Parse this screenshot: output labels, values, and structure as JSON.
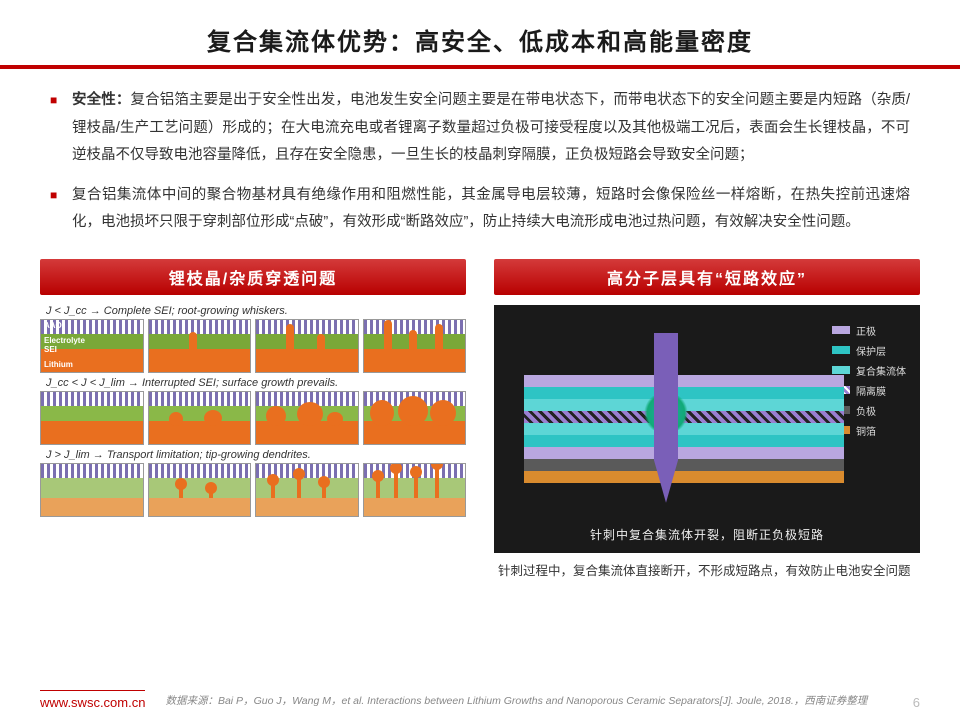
{
  "title": "复合集流体优势：高安全、低成本和高能量密度",
  "bullets": [
    {
      "bold": "安全性：",
      "text": "复合铝箔主要是出于安全性出发，电池发生安全问题主要是在带电状态下，而带电状态下的安全问题主要是内短路（杂质/锂枝晶/生产工艺问题）形成的；在大电流充电或者锂离子数量超过负极可接受程度以及其他极端工况后，表面会生长锂枝晶，不可逆枝晶不仅导致电池容量降低，且存在安全隐患，一旦生长的枝晶刺穿隔膜，正负极短路会导致安全问题；"
    },
    {
      "bold": "",
      "text": "复合铝集流体中间的聚合物基材具有绝缘作用和阻燃性能，其金属导电层较薄，短路时会像保险丝一样熔断，在热失控前迅速熔化，电池损坏只限于穿刺部位形成“点破”，有效形成“断路效应”，防止持续大电流形成电池过热问题，有效解决安全性问题。"
    }
  ],
  "left_panel": {
    "header": "锂枝晶/杂质穿透问题",
    "row1_label": "J < J_cc → Complete SEI; root-growing whiskers.",
    "row2_label": "J_cc < J < J_lim → Interrupted SEI; surface growth prevails.",
    "row3_label": "J > J_lim → Transport limitation; tip-growing dendrites.",
    "labels": {
      "aao": "AAO",
      "electrolyte": "Electrolyte",
      "sei": "SEI",
      "lithium": "Lithium"
    },
    "colors": {
      "stripe_purple": "#7b6fb0",
      "electrolyte_green": "#7aa838",
      "lithium_orange": "#e96f1f",
      "row3_green": "#a8c878",
      "row3_orange": "#e9a25a"
    }
  },
  "right_panel": {
    "header": "高分子层具有“短路效应”",
    "caption_inside": "针刺中复合集流体开裂，阻断正负极短路",
    "note_below": "针刺过程中，复合集流体直接断开，不形成短路点，有效防止电池安全问题",
    "legend": [
      {
        "label": "正极",
        "color": "#b9a7e0"
      },
      {
        "label": "保护层",
        "color": "#2ec4c4"
      },
      {
        "label": "复合集流体",
        "color": "#5dd6d6"
      },
      {
        "label": "隔离膜",
        "color": "#9a7fd1",
        "hatch": true
      },
      {
        "label": "负极",
        "color": "#5a5a5a"
      },
      {
        "label": "铜箔",
        "color": "#d98b2e"
      }
    ],
    "nail_color": "#7a5fb8",
    "bg": "#1a1a1a"
  },
  "footer": {
    "url": "www.swsc.com.cn",
    "source_prefix": "数据来源：",
    "source": "Bai P，Guo J，Wang M，et al. Interactions between Lithium Growths and Nanoporous Ceramic Separators[J]. Joule, 2018.，西南证券整理",
    "page": "6"
  }
}
